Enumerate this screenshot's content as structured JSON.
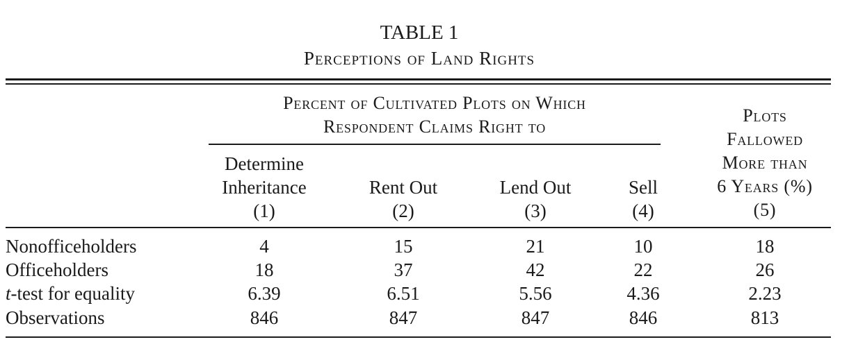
{
  "table": {
    "number": "TABLE 1",
    "title": "Perceptions of Land Rights",
    "spanner_line1": "Percent of Cultivated Plots on Which",
    "spanner_line2": "Respondent Claims Right to",
    "columns": [
      {
        "line1": "Determine",
        "line2": "Inheritance",
        "number": "(1)"
      },
      {
        "line1": "",
        "line2": "Rent Out",
        "number": "(2)"
      },
      {
        "line1": "",
        "line2": "Lend Out",
        "number": "(3)"
      },
      {
        "line1": "",
        "line2": "Sell",
        "number": "(4)"
      },
      {
        "line1": "Plots",
        "line2": "Fallowed",
        "line3": "More than",
        "line4": "6 Years (%)",
        "number": "(5)"
      }
    ],
    "rows": [
      {
        "label": "Nonofficeholders",
        "values": [
          "4",
          "15",
          "21",
          "10",
          "18"
        ]
      },
      {
        "label": "Officeholders",
        "values": [
          "18",
          "37",
          "42",
          "22",
          "26"
        ]
      },
      {
        "label_italic": "t",
        "label": "-test for equality",
        "values": [
          "6.39",
          "6.51",
          "5.56",
          "4.36",
          "2.23"
        ]
      },
      {
        "label": "Observations",
        "values": [
          "846",
          "847",
          "847",
          "846",
          "813"
        ]
      }
    ]
  }
}
